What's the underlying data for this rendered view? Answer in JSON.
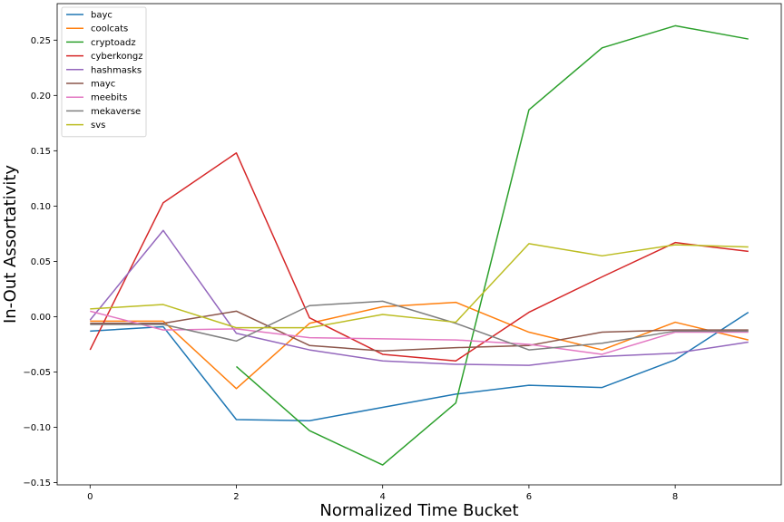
{
  "chart_data": {
    "type": "line",
    "title": "",
    "xlabel": "Normalized Time Bucket",
    "ylabel": "In-Out Assortativity",
    "xlim": [
      -0.45,
      9.45
    ],
    "ylim": [
      -0.152,
      0.283
    ],
    "x_ticks": [
      0,
      2,
      4,
      6,
      8
    ],
    "y_ticks": [
      -0.15,
      -0.1,
      -0.05,
      0.0,
      0.05,
      0.1,
      0.15,
      0.2,
      0.25
    ],
    "y_tick_labels": [
      "−0.15",
      "−0.10",
      "−0.05",
      "0.00",
      "0.05",
      "0.10",
      "0.15",
      "0.20",
      "0.25"
    ],
    "grid": false,
    "legend_position": "top-left",
    "x": [
      0,
      1,
      2,
      3,
      4,
      5,
      6,
      7,
      8,
      9
    ],
    "series": [
      {
        "name": "bayc",
        "color": "#1f77b4",
        "values": [
          -0.013,
          -0.009,
          -0.093,
          -0.094,
          -0.082,
          -0.07,
          -0.062,
          -0.064,
          -0.039,
          0.004
        ]
      },
      {
        "name": "coolcats",
        "color": "#ff7f0e",
        "values": [
          -0.004,
          -0.004,
          -0.065,
          -0.006,
          0.009,
          0.013,
          -0.014,
          -0.03,
          -0.005,
          -0.021
        ]
      },
      {
        "name": "cryptoadz",
        "color": "#2ca02c",
        "values": [
          null,
          null,
          -0.045,
          -0.103,
          -0.134,
          -0.078,
          0.187,
          0.243,
          0.263,
          0.251
        ]
      },
      {
        "name": "cyberkongz",
        "color": "#d62728",
        "values": [
          -0.03,
          0.103,
          0.148,
          -0.001,
          -0.034,
          -0.04,
          0.004,
          0.036,
          0.067,
          0.059
        ]
      },
      {
        "name": "hashmasks",
        "color": "#9467bd",
        "values": [
          -0.003,
          0.078,
          -0.015,
          -0.03,
          -0.04,
          -0.043,
          -0.044,
          -0.036,
          -0.033,
          -0.023
        ]
      },
      {
        "name": "mayc",
        "color": "#8c564b",
        "values": [
          -0.006,
          -0.006,
          0.005,
          -0.026,
          -0.031,
          -0.028,
          -0.026,
          -0.014,
          -0.012,
          -0.012
        ]
      },
      {
        "name": "meebits",
        "color": "#e377c2",
        "values": [
          0.005,
          -0.012,
          -0.011,
          -0.019,
          -0.02,
          -0.021,
          -0.025,
          -0.034,
          -0.014,
          -0.014
        ]
      },
      {
        "name": "mekaverse",
        "color": "#7f7f7f",
        "values": [
          -0.007,
          -0.007,
          -0.022,
          0.01,
          0.014,
          -0.006,
          -0.03,
          -0.024,
          -0.013,
          -0.013
        ]
      },
      {
        "name": "svs",
        "color": "#bcbd22",
        "values": [
          0.007,
          0.011,
          -0.01,
          -0.01,
          0.002,
          -0.005,
          0.066,
          0.055,
          0.065,
          0.063
        ]
      }
    ]
  }
}
